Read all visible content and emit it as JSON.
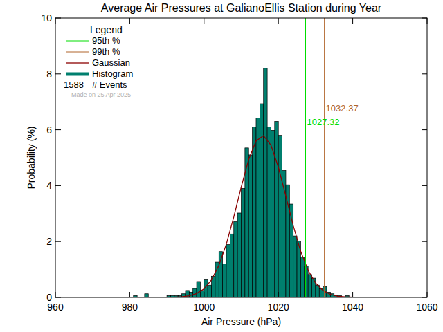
{
  "chart_data": {
    "type": "histogram",
    "title": "Average Air Pressures at GalianoEllis Station during Year",
    "x_label": "Air Pressure (hPa)",
    "y_label": "Probability (%)",
    "legend": "top-left",
    "legend_title": "Legend",
    "name": "Histogram",
    "color": "#007f6e",
    "bins": [
      980,
      981,
      982,
      983,
      984,
      985,
      986,
      987,
      988,
      989,
      990,
      991,
      992,
      993,
      994,
      995,
      996,
      997,
      998,
      999,
      1000,
      1001,
      1002,
      1003,
      1004,
      1005,
      1006,
      1007,
      1008,
      1009,
      1010,
      1011,
      1012,
      1013,
      1014,
      1015,
      1016,
      1017,
      1018,
      1019,
      1020,
      1021,
      1022,
      1023,
      1024,
      1025,
      1026,
      1027,
      1028,
      1029,
      1030,
      1031,
      1032,
      1033,
      1034,
      1035,
      1036,
      1037,
      1038,
      1039,
      1040
    ],
    "values": [
      0,
      0.06,
      0,
      0,
      0.13,
      0,
      0,
      0,
      0,
      0,
      0.06,
      0.06,
      0.06,
      0.06,
      0.13,
      0.25,
      0.19,
      0.32,
      0.57,
      0.25,
      0.63,
      0.44,
      0.76,
      1.26,
      1.64,
      1.2,
      1.89,
      2.27,
      2.71,
      3.02,
      3.9,
      5.35,
      5.1,
      6.1,
      6.42,
      6.93,
      8.2,
      6.1,
      5.98,
      6.3,
      5.8,
      4.54,
      4.03,
      3.34,
      2.2,
      2.02,
      1.45,
      1.13,
      0.82,
      0.69,
      0.44,
      0.31,
      0.38,
      0.19,
      0.13,
      0.06,
      0.06,
      0,
      0.06,
      0
    ],
    "series": [
      {
        "name": "Gaussian",
        "type": "line",
        "color": "#8b0000",
        "x": [
          960,
          988,
          990,
          992,
          994,
          996,
          998,
          1000,
          1002,
          1004,
          1006,
          1008,
          1010,
          1012,
          1014,
          1016,
          1018,
          1020,
          1022,
          1024,
          1026,
          1028,
          1030,
          1032,
          1034,
          1036,
          1038,
          1040,
          1042,
          1060
        ],
        "values": [
          0,
          0,
          0.01,
          0.01,
          0.02,
          0.06,
          0.14,
          0.31,
          0.63,
          1.15,
          1.91,
          2.88,
          3.95,
          4.93,
          5.6,
          5.79,
          5.45,
          4.66,
          3.63,
          2.57,
          1.65,
          0.97,
          0.52,
          0.25,
          0.11,
          0.04,
          0.02,
          0.01,
          0,
          0
        ]
      }
    ],
    "percentile_lines": [
      {
        "name": "95th %",
        "value": 1027.32,
        "color": "#00dd00"
      },
      {
        "name": "99th %",
        "value": 1032.37,
        "color": "#b0642a"
      }
    ],
    "events": 1588,
    "events_label": "# Events",
    "note": "Made on 25 Apr 2025",
    "xlim": [
      960,
      1060
    ],
    "ylim": [
      0,
      10
    ],
    "xticks": [
      960,
      980,
      1000,
      1020,
      1040,
      1060
    ],
    "yticks": [
      0,
      2,
      4,
      6,
      8,
      10
    ]
  }
}
